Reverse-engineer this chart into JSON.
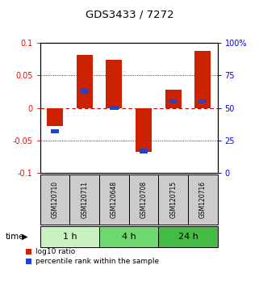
{
  "title": "GDS3433 / 7272",
  "samples": [
    "GSM120710",
    "GSM120711",
    "GSM120648",
    "GSM120708",
    "GSM120715",
    "GSM120716"
  ],
  "log10_ratio": [
    -0.028,
    0.082,
    0.074,
    -0.068,
    0.028,
    0.088
  ],
  "percentile_rank": [
    0.32,
    0.63,
    0.5,
    0.17,
    0.55,
    0.55
  ],
  "groups": [
    {
      "label": "1 h",
      "indices": [
        0,
        1
      ],
      "color": "#c8f0c0"
    },
    {
      "label": "4 h",
      "indices": [
        2,
        3
      ],
      "color": "#70d870"
    },
    {
      "label": "24 h",
      "indices": [
        4,
        5
      ],
      "color": "#44bb44"
    }
  ],
  "bar_color_red": "#cc2200",
  "bar_color_blue": "#2244cc",
  "ylim": [
    -0.1,
    0.1
  ],
  "yticks_left": [
    -0.1,
    -0.05,
    0,
    0.05,
    0.1
  ],
  "yticks_right": [
    0,
    25,
    50,
    75,
    100
  ],
  "hline_zero_color": "#cc0000",
  "sample_box_color": "#cccccc",
  "time_label": "time",
  "legend_red": "log10 ratio",
  "legend_blue": "percentile rank within the sample",
  "bar_width": 0.55,
  "percentile_bar_width": 0.28,
  "percentile_bar_height": 0.007
}
